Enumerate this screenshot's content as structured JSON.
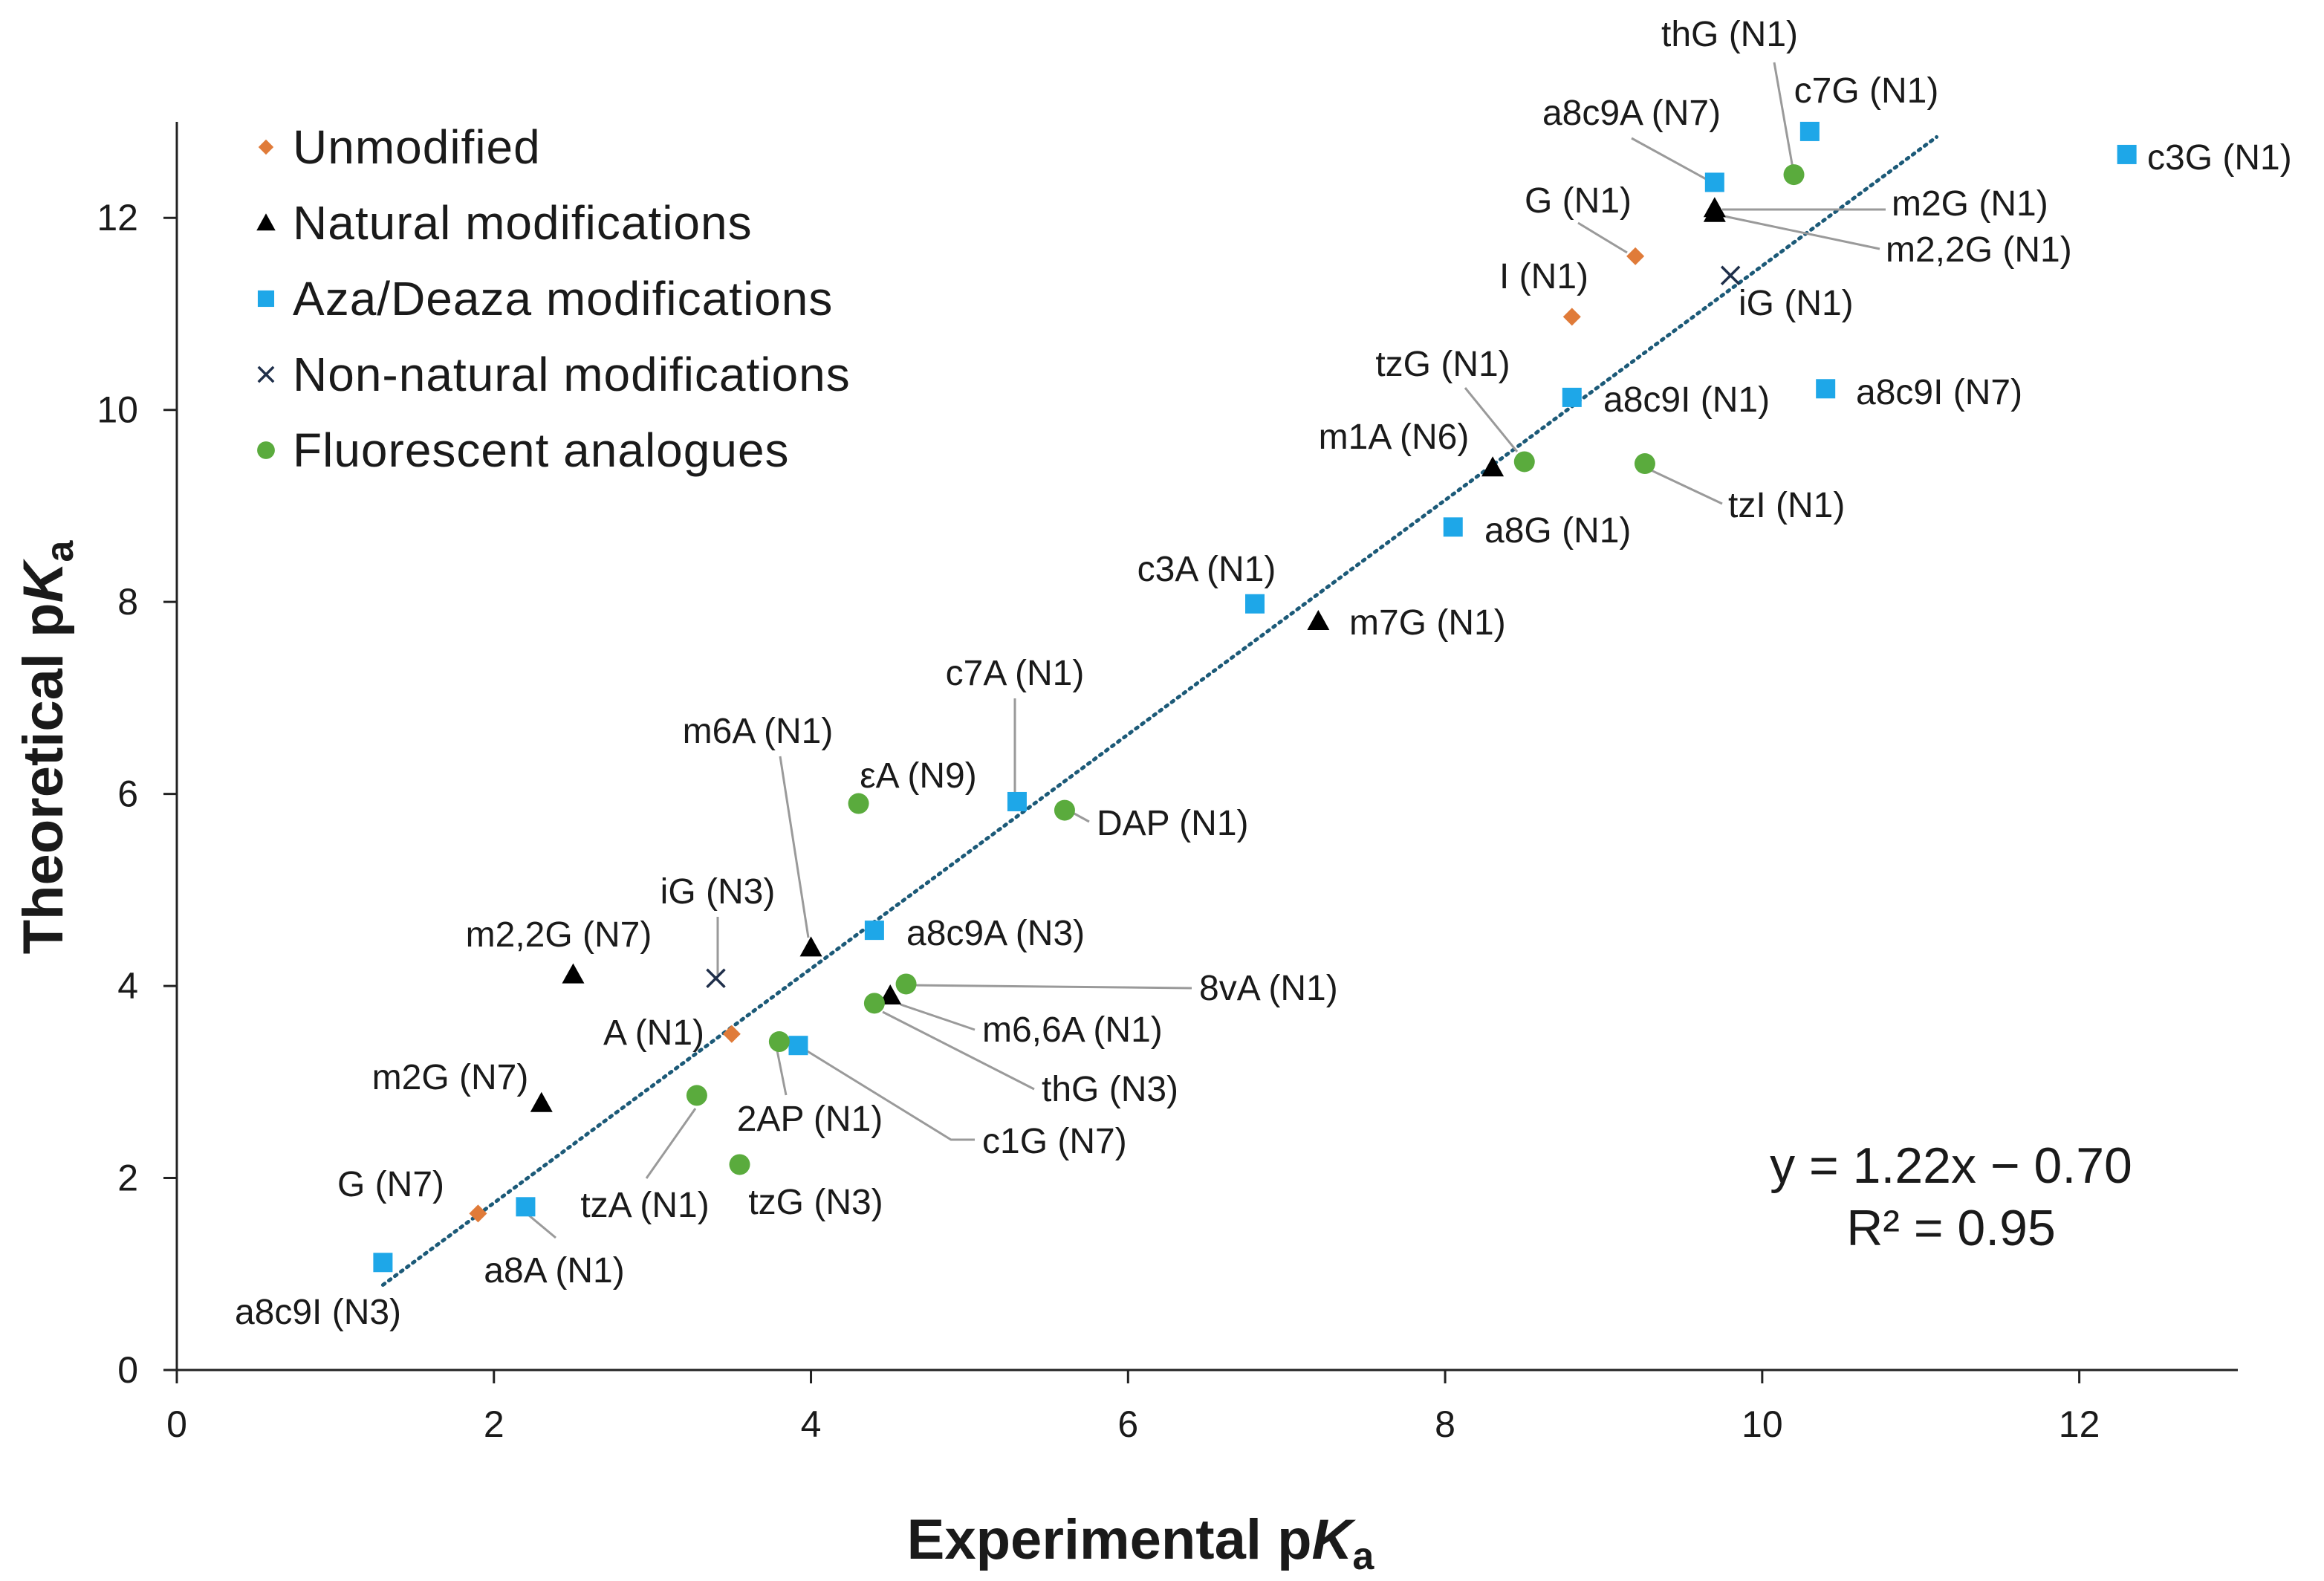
{
  "chart_data": {
    "type": "scatter",
    "xlabel_main": "Experimental p",
    "xlabel_italic": "K",
    "xlabel_sub": "a",
    "ylabel_main": "Theoretical p",
    "ylabel_italic": "K",
    "ylabel_sub": "a",
    "xlim": [
      0,
      13
    ],
    "ylim": [
      0,
      13
    ],
    "xticks": [
      0,
      2,
      4,
      6,
      8,
      10,
      12
    ],
    "yticks": [
      0,
      2,
      4,
      6,
      8,
      10,
      12
    ],
    "categories": [
      {
        "key": "unmod",
        "name": "Unmodified",
        "marker": "diamond",
        "color": "#e07b39"
      },
      {
        "key": "nat",
        "name": "Natural modifications",
        "marker": "triangle",
        "color": "#000000"
      },
      {
        "key": "aza",
        "name": "Aza/Deaza modifications",
        "marker": "square",
        "color": "#1ea7e8"
      },
      {
        "key": "non",
        "name": "Non-natural modifications",
        "marker": "cross",
        "color": "#1f2f4a"
      },
      {
        "key": "fluo",
        "name": "Fluorescent analogues",
        "marker": "circle",
        "color": "#5aab3d"
      }
    ],
    "points": [
      {
        "label": "G (N1)",
        "cat": "unmod",
        "x": 9.2,
        "y": 11.6
      },
      {
        "label": "I (N1)",
        "cat": "unmod",
        "x": 8.8,
        "y": 10.97
      },
      {
        "label": "A (N1)",
        "cat": "unmod",
        "x": 3.5,
        "y": 3.5
      },
      {
        "label": "G (N7)",
        "cat": "unmod",
        "x": 1.9,
        "y": 1.63
      },
      {
        "label": "m2G (N1)",
        "cat": "nat",
        "x": 9.7,
        "y": 12.1
      },
      {
        "label": "m2,2G (N1)",
        "cat": "nat",
        "x": 9.7,
        "y": 12.05
      },
      {
        "label": "m1A (N6)",
        "cat": "nat",
        "x": 8.3,
        "y": 9.4
      },
      {
        "label": "m7G (N1)",
        "cat": "nat",
        "x": 7.2,
        "y": 7.8
      },
      {
        "label": "m6A (N1)",
        "cat": "nat",
        "x": 4.0,
        "y": 4.4
      },
      {
        "label": "m6,6A (N1)",
        "cat": "nat",
        "x": 4.5,
        "y": 3.9
      },
      {
        "label": "m2,2G (N7)",
        "cat": "nat",
        "x": 2.5,
        "y": 4.12
      },
      {
        "label": "m2G (N7)",
        "cat": "nat",
        "x": 2.3,
        "y": 2.78
      },
      {
        "label": "c7G (N1)",
        "cat": "aza",
        "x": 10.3,
        "y": 12.9
      },
      {
        "label": "a8c9A (N7)",
        "cat": "aza",
        "x": 9.7,
        "y": 12.37
      },
      {
        "label": "c3G (N1)",
        "cat": "aza",
        "x": 12.3,
        "y": 12.66
      },
      {
        "label": "a8c9I (N1)",
        "cat": "aza",
        "x": 8.8,
        "y": 10.13
      },
      {
        "label": "a8c9I (N7)",
        "cat": "aza",
        "x": 10.4,
        "y": 10.22
      },
      {
        "label": "a8G (N1)",
        "cat": "aza",
        "x": 8.05,
        "y": 8.78
      },
      {
        "label": "c3A (N1)",
        "cat": "aza",
        "x": 6.8,
        "y": 7.98
      },
      {
        "label": "c7A (N1)",
        "cat": "aza",
        "x": 5.3,
        "y": 5.92
      },
      {
        "label": "a8c9A (N3)",
        "cat": "aza",
        "x": 4.4,
        "y": 4.58
      },
      {
        "label": "c1G (N7)",
        "cat": "aza",
        "x": 3.92,
        "y": 3.38
      },
      {
        "label": "a8A (N1)",
        "cat": "aza",
        "x": 2.2,
        "y": 1.7
      },
      {
        "label": "a8c9I (N3)",
        "cat": "aza",
        "x": 1.3,
        "y": 1.12
      },
      {
        "label": "iG (N1)",
        "cat": "non",
        "x": 9.8,
        "y": 11.4
      },
      {
        "label": "iG (N3)",
        "cat": "non",
        "x": 3.4,
        "y": 4.08
      },
      {
        "label": "thG (N1)",
        "cat": "fluo",
        "x": 10.2,
        "y": 12.45
      },
      {
        "label": "tzG (N1)",
        "cat": "fluo",
        "x": 8.5,
        "y": 9.46
      },
      {
        "label": "tzI (N1)",
        "cat": "fluo",
        "x": 9.26,
        "y": 9.44
      },
      {
        "label": "εA (N9)",
        "cat": "fluo",
        "x": 4.3,
        "y": 5.9
      },
      {
        "label": "DAP (N1)",
        "cat": "fluo",
        "x": 5.6,
        "y": 5.83
      },
      {
        "label": "8vA (N1)",
        "cat": "fluo",
        "x": 4.6,
        "y": 4.02
      },
      {
        "label": "thG (N3)",
        "cat": "fluo",
        "x": 4.4,
        "y": 3.82
      },
      {
        "label": "2AP (N1)",
        "cat": "fluo",
        "x": 3.8,
        "y": 3.42
      },
      {
        "label": "tzA (N1)",
        "cat": "fluo",
        "x": 3.28,
        "y": 2.86
      },
      {
        "label": "tzG (N3)",
        "cat": "fluo",
        "x": 3.55,
        "y": 2.14
      }
    ],
    "trendline": {
      "slope": 1.22,
      "intercept": -0.7,
      "x_range": [
        1.3,
        11.1
      ],
      "color": "#1c5a78"
    },
    "equation": "y = 1.22x − 0.70",
    "r_squared": "R² = 0.95"
  }
}
